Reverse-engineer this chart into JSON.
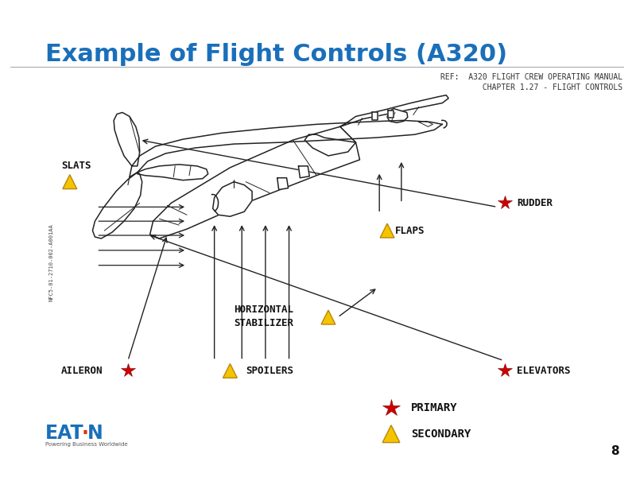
{
  "title": "Example of Flight Controls (A320)",
  "title_color": "#1a6fba",
  "title_fontsize": 22,
  "ref_line1": "REF:  A320 FLIGHT CREW OPERATING MANUAL",
  "ref_line2": "         CHAPTER 1.27 - FLIGHT CONTROLS",
  "ref_color": "#333333",
  "ref_fontsize": 7.0,
  "bg_color": "#ffffff",
  "label_fontsize": 9,
  "label_color": "#111111",
  "side_text": "NFC5-01-2710-002-A001AA",
  "page_number": "8",
  "primary_label": "PRIMARY",
  "secondary_label": "SECONDARY",
  "star_primary_color": "#cc0000",
  "triangle_color_fill": "#f5c400",
  "triangle_color_edge": "#b8860b",
  "aircraft_color": "#222222",
  "arrow_color": "#222222"
}
